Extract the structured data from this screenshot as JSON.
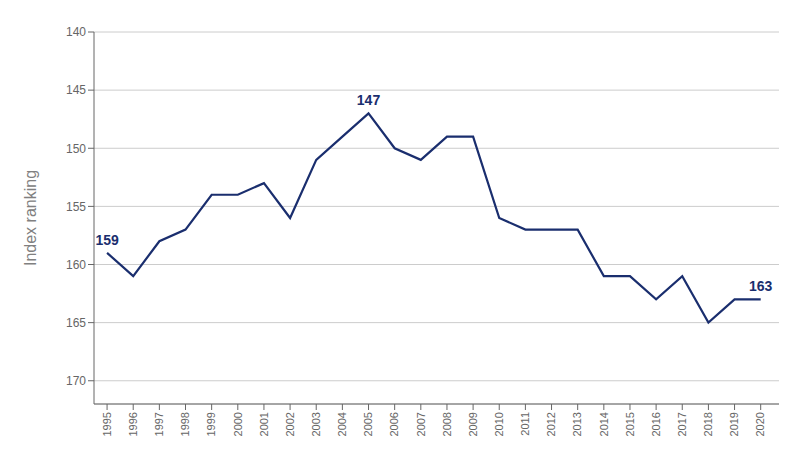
{
  "chart_data": {
    "type": "line",
    "x": [
      1995,
      1996,
      1997,
      1998,
      1999,
      2000,
      2001,
      2002,
      2003,
      2004,
      2005,
      2006,
      2007,
      2008,
      2009,
      2010,
      2011,
      2012,
      2013,
      2014,
      2015,
      2016,
      2017,
      2018,
      2019,
      2020
    ],
    "values": [
      159,
      161,
      158,
      157,
      154,
      154,
      153,
      156,
      151,
      149,
      147,
      150,
      151,
      149,
      149,
      156,
      157,
      157,
      157,
      161,
      161,
      163,
      161,
      165,
      163,
      163
    ],
    "color": "#1a2e6e",
    "ylabel": "Index ranking",
    "xlim": [
      1994.5,
      2020.7
    ],
    "xticks": [
      1995,
      1996,
      1997,
      1998,
      1999,
      2000,
      2001,
      2002,
      2003,
      2004,
      2005,
      2006,
      2007,
      2008,
      2009,
      2010,
      2011,
      2012,
      2013,
      2014,
      2015,
      2016,
      2017,
      2018,
      2019,
      2020
    ],
    "ylim": [
      172,
      140
    ],
    "yticks": [
      140,
      145,
      150,
      155,
      160,
      165,
      170
    ],
    "grid": "y",
    "annotations": [
      {
        "text": "159",
        "x": 1995,
        "y": 159
      },
      {
        "text": "147",
        "x": 2005,
        "y": 147
      },
      {
        "text": "163",
        "x": 2020,
        "y": 163
      }
    ]
  }
}
